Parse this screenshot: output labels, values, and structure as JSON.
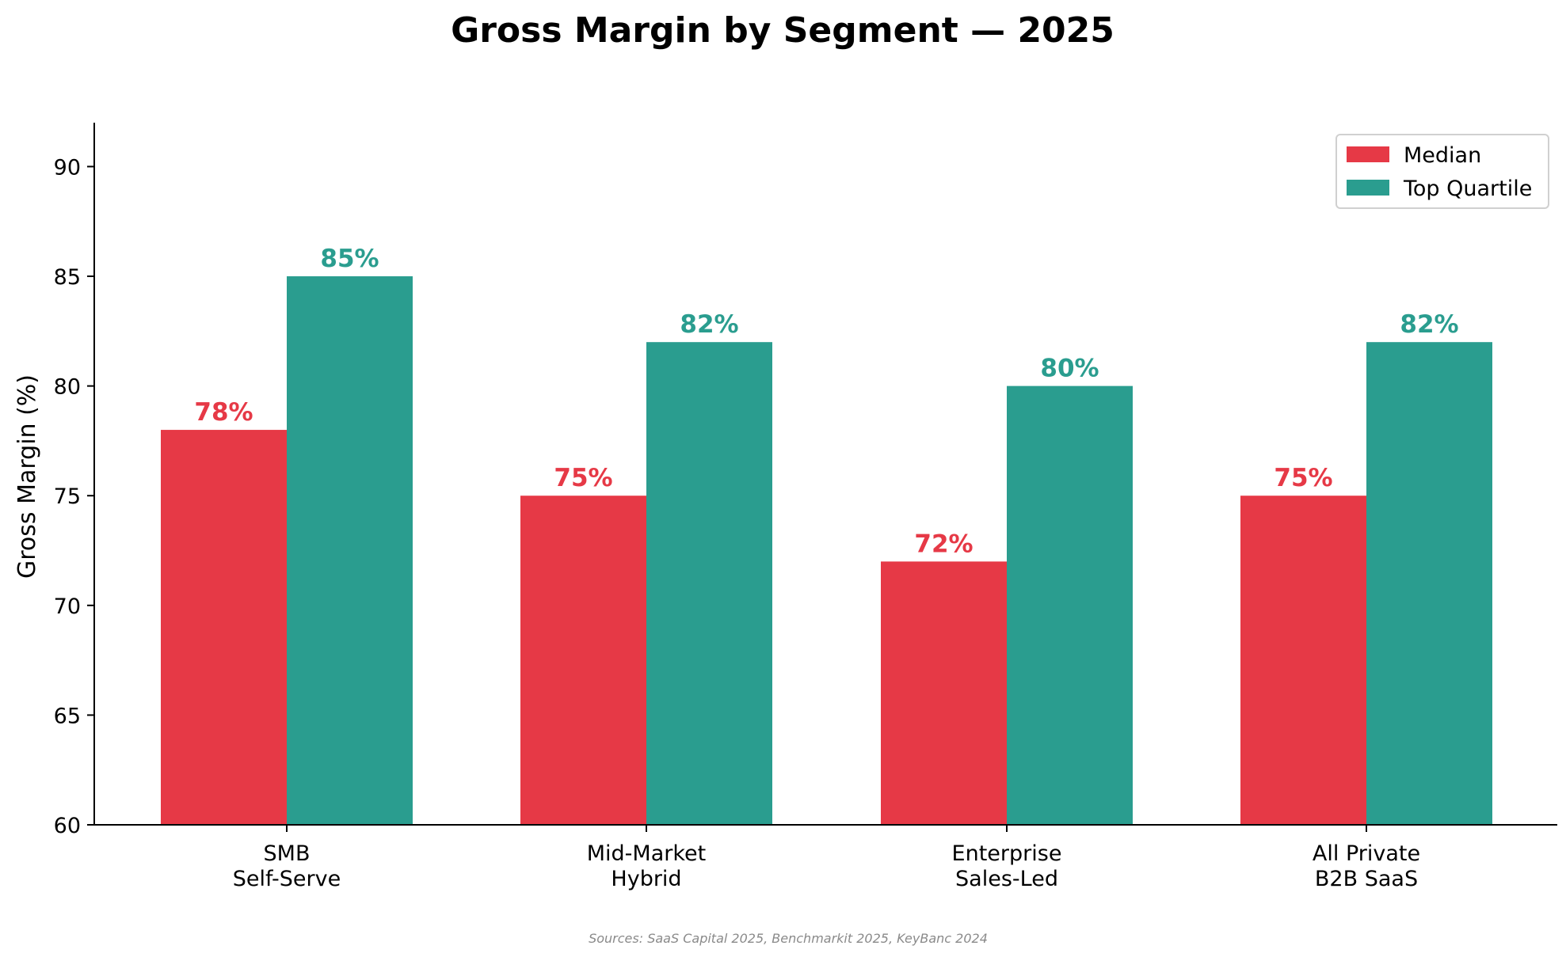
{
  "chart_data": {
    "type": "bar",
    "title": "Gross Margin by Segment — 2025",
    "xlabel": "",
    "ylabel": "Gross Margin (%)",
    "ylim": [
      60,
      92
    ],
    "yticks": [
      60,
      65,
      70,
      75,
      80,
      85,
      90
    ],
    "categories": [
      [
        "SMB",
        "Self-Serve"
      ],
      [
        "Mid-Market",
        "Hybrid"
      ],
      [
        "Enterprise",
        "Sales-Led"
      ],
      [
        "All Private",
        "B2B SaaS"
      ]
    ],
    "series": [
      {
        "name": "Median",
        "color": "#e63946",
        "values": [
          78,
          75,
          72,
          75
        ],
        "labels": [
          "78%",
          "75%",
          "72%",
          "75%"
        ]
      },
      {
        "name": "Top Quartile",
        "color": "#2a9d8f",
        "values": [
          85,
          82,
          80,
          82
        ],
        "labels": [
          "85%",
          "82%",
          "80%",
          "82%"
        ]
      }
    ],
    "legend": "top-right",
    "grid": false,
    "source": "Sources: SaaS Capital 2025, Benchmarkit 2025, KeyBanc 2024"
  }
}
